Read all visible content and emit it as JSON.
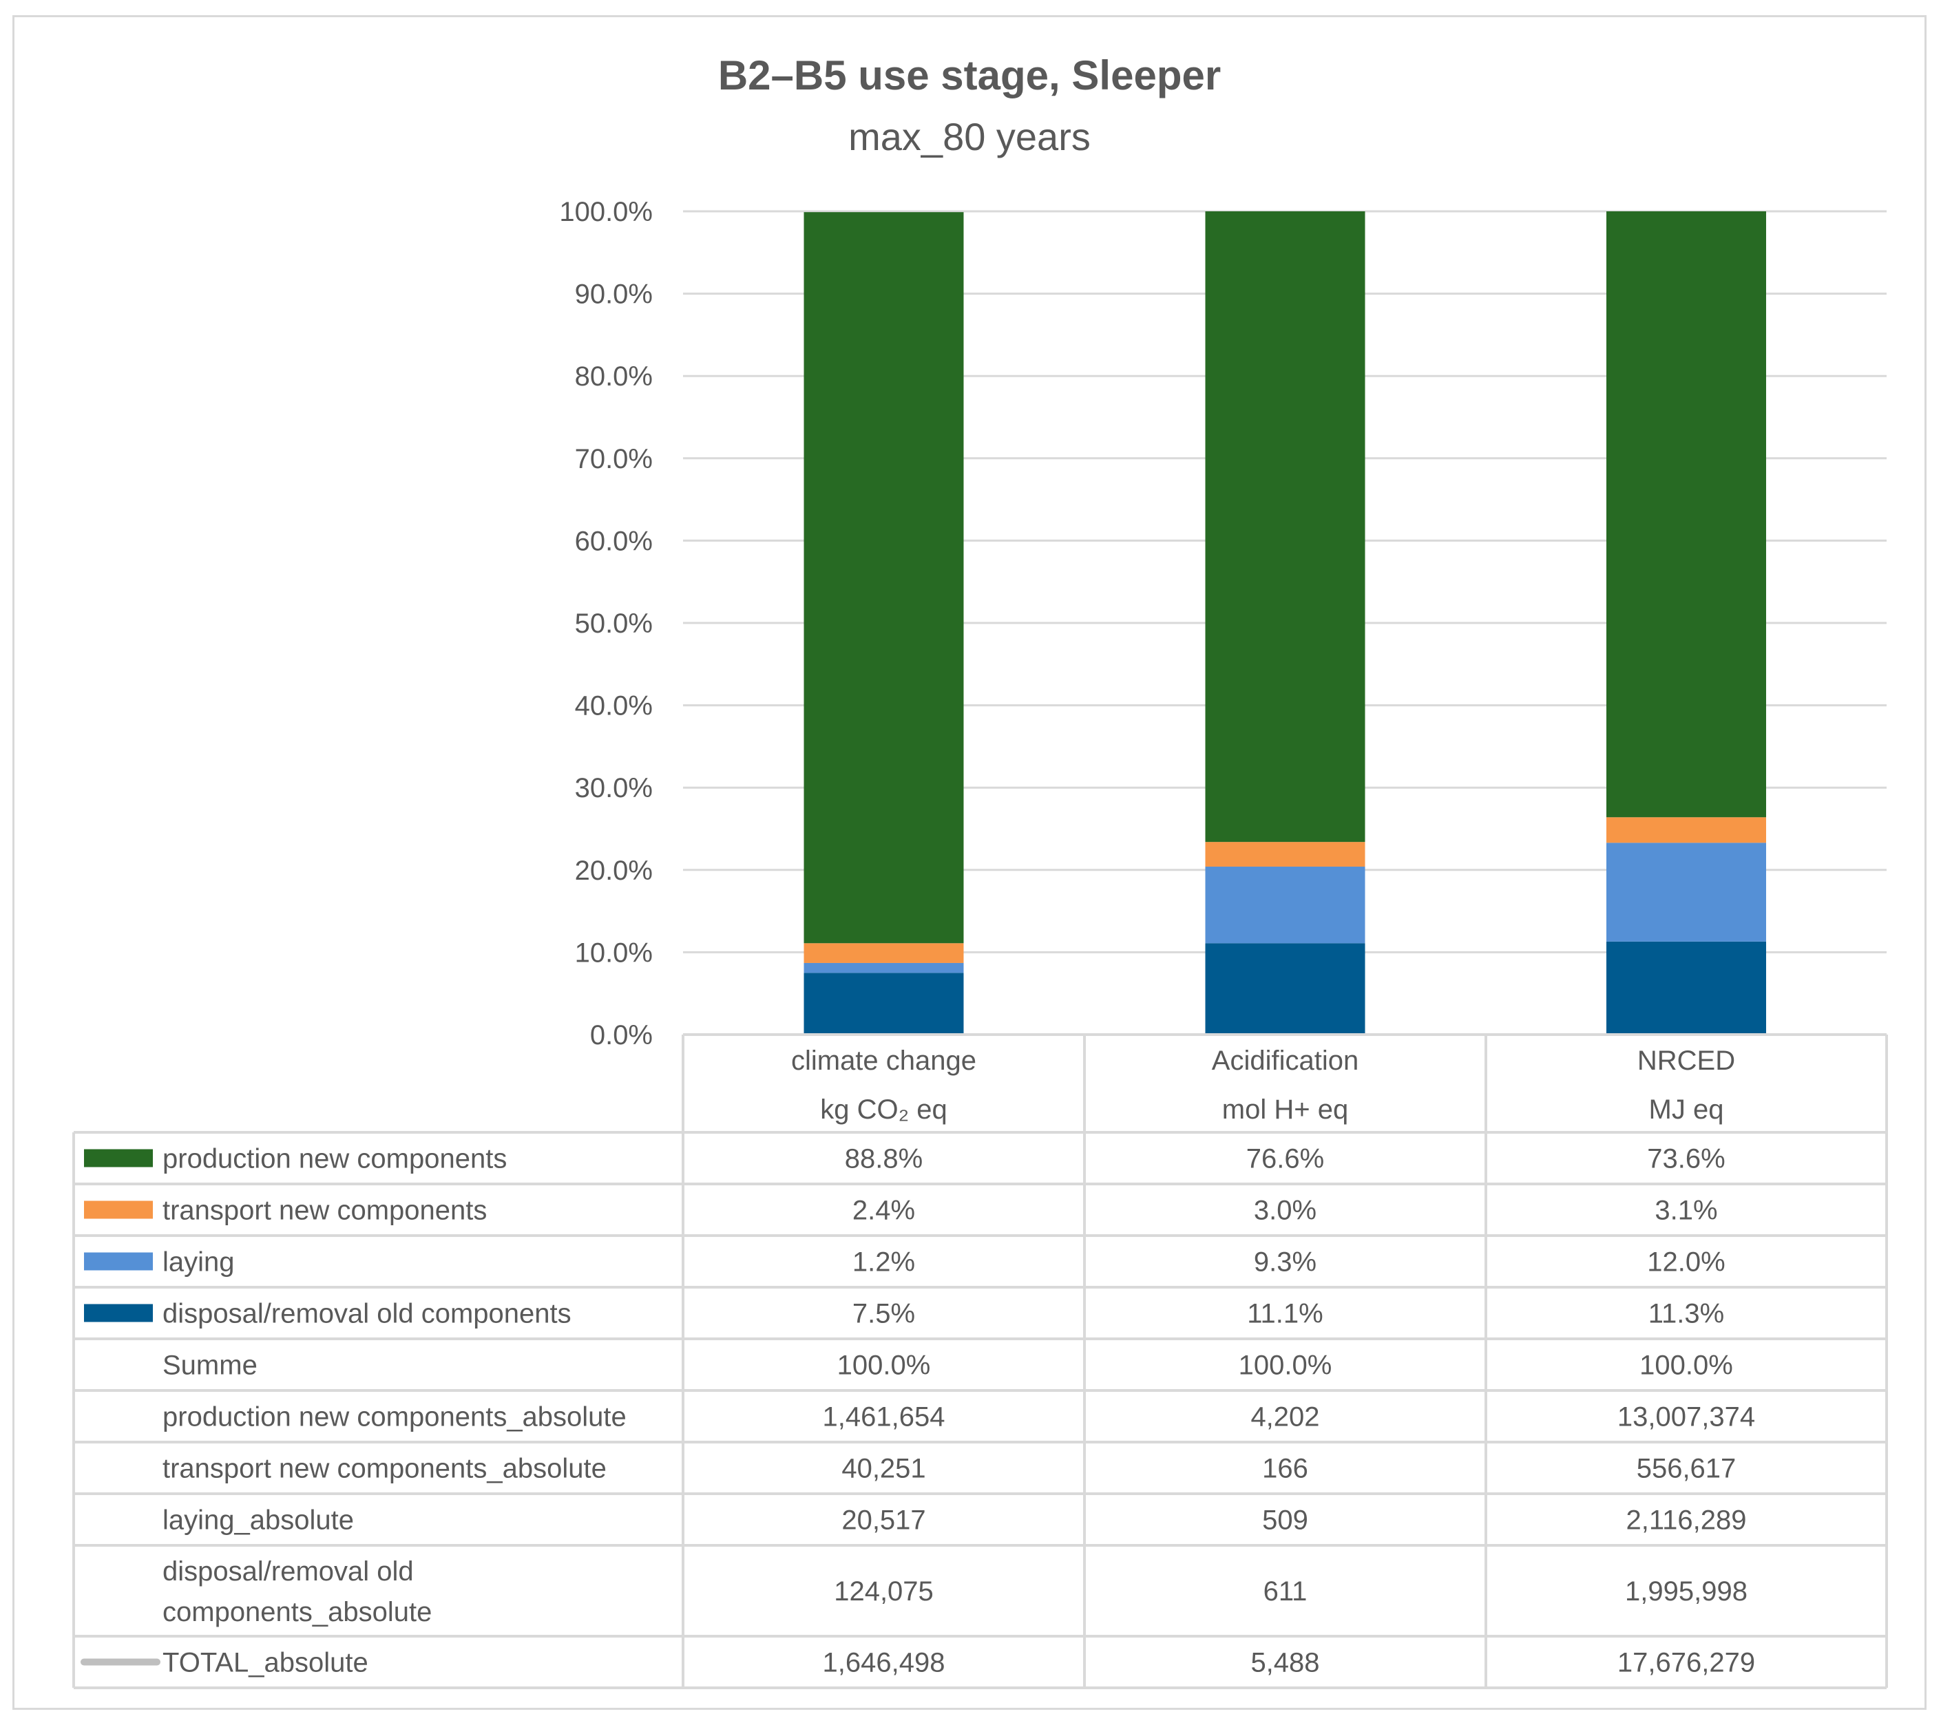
{
  "chart_data": {
    "type": "bar",
    "stacked": true,
    "title": "B2–B5 use stage, Sleeper",
    "subtitle": "max_80 years",
    "y_axis": {
      "min": 0,
      "max": 100,
      "step": 10,
      "format": "percent",
      "tick_labels": [
        "0.0%",
        "10.0%",
        "20.0%",
        "30.0%",
        "40.0%",
        "50.0%",
        "60.0%",
        "70.0%",
        "80.0%",
        "90.0%",
        "100.0%"
      ]
    },
    "categories": [
      {
        "name": "climate change",
        "unit": "kg CO₂ eq"
      },
      {
        "name": "Acidification",
        "unit": "mol H+ eq"
      },
      {
        "name": "NRCED",
        "unit": "MJ eq"
      }
    ],
    "series": [
      {
        "name": "disposal/removal old components",
        "color": "#005a8f",
        "values": [
          7.5,
          11.1,
          11.3
        ],
        "labels": [
          "7.5%",
          "11.1%",
          "11.3%"
        ]
      },
      {
        "name": "laying",
        "color": "#5590d6",
        "values": [
          1.2,
          9.3,
          12.0
        ],
        "labels": [
          "1.2%",
          "9.3%",
          "12.0%"
        ]
      },
      {
        "name": "transport new components",
        "color": "#f79646",
        "values": [
          2.4,
          3.0,
          3.1
        ],
        "labels": [
          "2.4%",
          "3.0%",
          "3.1%"
        ]
      },
      {
        "name": "production new components",
        "color": "#276a23",
        "values": [
          88.8,
          76.6,
          73.6
        ],
        "labels": [
          "88.8%",
          "76.6%",
          "73.6%"
        ]
      }
    ],
    "table_rows": [
      {
        "label": "production new components",
        "legend": "production new components",
        "values": [
          "88.8%",
          "76.6%",
          "73.6%"
        ]
      },
      {
        "label": "transport new components",
        "legend": "transport new components",
        "values": [
          "2.4%",
          "3.0%",
          "3.1%"
        ]
      },
      {
        "label": "laying",
        "legend": "laying",
        "values": [
          "1.2%",
          "9.3%",
          "12.0%"
        ]
      },
      {
        "label": "disposal/removal old components",
        "legend": "disposal/removal old components",
        "values": [
          "7.5%",
          "11.1%",
          "11.3%"
        ]
      },
      {
        "label": "Summe",
        "legend": null,
        "values": [
          "100.0%",
          "100.0%",
          "100.0%"
        ]
      },
      {
        "label": "production new components_absolute",
        "legend": null,
        "values": [
          "1,461,654",
          "4,202",
          "13,007,374"
        ]
      },
      {
        "label": "transport new components_absolute",
        "legend": null,
        "values": [
          "40,251",
          "166",
          "556,617"
        ]
      },
      {
        "label": "laying_absolute",
        "legend": null,
        "values": [
          "20,517",
          "509",
          "2,116,289"
        ]
      },
      {
        "label": " disposal/removal old components_absolute",
        "label_lines": [
          " disposal/removal old",
          "components_absolute"
        ],
        "legend": null,
        "values": [
          "124,075",
          "611",
          "1,995,998"
        ]
      },
      {
        "label": "TOTAL_absolute",
        "legend": "line",
        "line_color": "#bfbfbf",
        "values": [
          "1,646,498",
          "5,488",
          "17,676,279"
        ]
      }
    ]
  }
}
